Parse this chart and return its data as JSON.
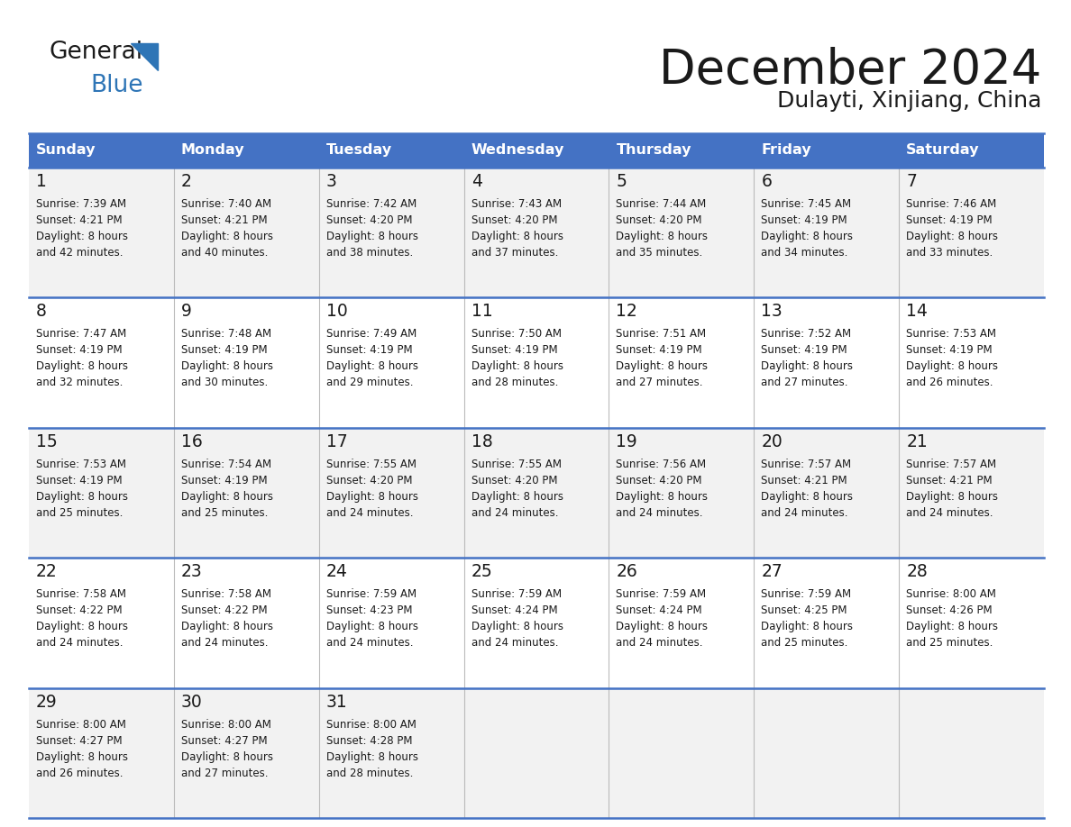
{
  "title": "December 2024",
  "subtitle": "Dulayti, Xinjiang, China",
  "header_color": "#4472C4",
  "header_text_color": "#FFFFFF",
  "day_names": [
    "Sunday",
    "Monday",
    "Tuesday",
    "Wednesday",
    "Thursday",
    "Friday",
    "Saturday"
  ],
  "bg_color": "#FFFFFF",
  "row_bg_even": "#F2F2F2",
  "row_bg_odd": "#FFFFFF",
  "line_color": "#4472C4",
  "text_color": "#1a1a1a",
  "days": [
    {
      "day": 1,
      "col": 0,
      "row": 0,
      "sunrise": "7:39 AM",
      "sunset": "4:21 PM",
      "daylight": "8 hours and 42 minutes."
    },
    {
      "day": 2,
      "col": 1,
      "row": 0,
      "sunrise": "7:40 AM",
      "sunset": "4:21 PM",
      "daylight": "8 hours and 40 minutes."
    },
    {
      "day": 3,
      "col": 2,
      "row": 0,
      "sunrise": "7:42 AM",
      "sunset": "4:20 PM",
      "daylight": "8 hours and 38 minutes."
    },
    {
      "day": 4,
      "col": 3,
      "row": 0,
      "sunrise": "7:43 AM",
      "sunset": "4:20 PM",
      "daylight": "8 hours and 37 minutes."
    },
    {
      "day": 5,
      "col": 4,
      "row": 0,
      "sunrise": "7:44 AM",
      "sunset": "4:20 PM",
      "daylight": "8 hours and 35 minutes."
    },
    {
      "day": 6,
      "col": 5,
      "row": 0,
      "sunrise": "7:45 AM",
      "sunset": "4:19 PM",
      "daylight": "8 hours and 34 minutes."
    },
    {
      "day": 7,
      "col": 6,
      "row": 0,
      "sunrise": "7:46 AM",
      "sunset": "4:19 PM",
      "daylight": "8 hours and 33 minutes."
    },
    {
      "day": 8,
      "col": 0,
      "row": 1,
      "sunrise": "7:47 AM",
      "sunset": "4:19 PM",
      "daylight": "8 hours and 32 minutes."
    },
    {
      "day": 9,
      "col": 1,
      "row": 1,
      "sunrise": "7:48 AM",
      "sunset": "4:19 PM",
      "daylight": "8 hours and 30 minutes."
    },
    {
      "day": 10,
      "col": 2,
      "row": 1,
      "sunrise": "7:49 AM",
      "sunset": "4:19 PM",
      "daylight": "8 hours and 29 minutes."
    },
    {
      "day": 11,
      "col": 3,
      "row": 1,
      "sunrise": "7:50 AM",
      "sunset": "4:19 PM",
      "daylight": "8 hours and 28 minutes."
    },
    {
      "day": 12,
      "col": 4,
      "row": 1,
      "sunrise": "7:51 AM",
      "sunset": "4:19 PM",
      "daylight": "8 hours and 27 minutes."
    },
    {
      "day": 13,
      "col": 5,
      "row": 1,
      "sunrise": "7:52 AM",
      "sunset": "4:19 PM",
      "daylight": "8 hours and 27 minutes."
    },
    {
      "day": 14,
      "col": 6,
      "row": 1,
      "sunrise": "7:53 AM",
      "sunset": "4:19 PM",
      "daylight": "8 hours and 26 minutes."
    },
    {
      "day": 15,
      "col": 0,
      "row": 2,
      "sunrise": "7:53 AM",
      "sunset": "4:19 PM",
      "daylight": "8 hours and 25 minutes."
    },
    {
      "day": 16,
      "col": 1,
      "row": 2,
      "sunrise": "7:54 AM",
      "sunset": "4:19 PM",
      "daylight": "8 hours and 25 minutes."
    },
    {
      "day": 17,
      "col": 2,
      "row": 2,
      "sunrise": "7:55 AM",
      "sunset": "4:20 PM",
      "daylight": "8 hours and 24 minutes."
    },
    {
      "day": 18,
      "col": 3,
      "row": 2,
      "sunrise": "7:55 AM",
      "sunset": "4:20 PM",
      "daylight": "8 hours and 24 minutes."
    },
    {
      "day": 19,
      "col": 4,
      "row": 2,
      "sunrise": "7:56 AM",
      "sunset": "4:20 PM",
      "daylight": "8 hours and 24 minutes."
    },
    {
      "day": 20,
      "col": 5,
      "row": 2,
      "sunrise": "7:57 AM",
      "sunset": "4:21 PM",
      "daylight": "8 hours and 24 minutes."
    },
    {
      "day": 21,
      "col": 6,
      "row": 2,
      "sunrise": "7:57 AM",
      "sunset": "4:21 PM",
      "daylight": "8 hours and 24 minutes."
    },
    {
      "day": 22,
      "col": 0,
      "row": 3,
      "sunrise": "7:58 AM",
      "sunset": "4:22 PM",
      "daylight": "8 hours and 24 minutes."
    },
    {
      "day": 23,
      "col": 1,
      "row": 3,
      "sunrise": "7:58 AM",
      "sunset": "4:22 PM",
      "daylight": "8 hours and 24 minutes."
    },
    {
      "day": 24,
      "col": 2,
      "row": 3,
      "sunrise": "7:59 AM",
      "sunset": "4:23 PM",
      "daylight": "8 hours and 24 minutes."
    },
    {
      "day": 25,
      "col": 3,
      "row": 3,
      "sunrise": "7:59 AM",
      "sunset": "4:24 PM",
      "daylight": "8 hours and 24 minutes."
    },
    {
      "day": 26,
      "col": 4,
      "row": 3,
      "sunrise": "7:59 AM",
      "sunset": "4:24 PM",
      "daylight": "8 hours and 24 minutes."
    },
    {
      "day": 27,
      "col": 5,
      "row": 3,
      "sunrise": "7:59 AM",
      "sunset": "4:25 PM",
      "daylight": "8 hours and 25 minutes."
    },
    {
      "day": 28,
      "col": 6,
      "row": 3,
      "sunrise": "8:00 AM",
      "sunset": "4:26 PM",
      "daylight": "8 hours and 25 minutes."
    },
    {
      "day": 29,
      "col": 0,
      "row": 4,
      "sunrise": "8:00 AM",
      "sunset": "4:27 PM",
      "daylight": "8 hours and 26 minutes."
    },
    {
      "day": 30,
      "col": 1,
      "row": 4,
      "sunrise": "8:00 AM",
      "sunset": "4:27 PM",
      "daylight": "8 hours and 27 minutes."
    },
    {
      "day": 31,
      "col": 2,
      "row": 4,
      "sunrise": "8:00 AM",
      "sunset": "4:28 PM",
      "daylight": "8 hours and 28 minutes."
    }
  ]
}
